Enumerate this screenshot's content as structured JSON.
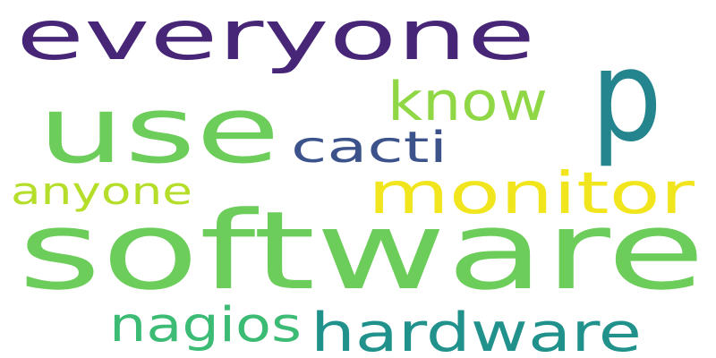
{
  "words": [
    {
      "id": "software",
      "text": "software",
      "color": "#6ccd5a"
    },
    {
      "id": "use",
      "text": "use",
      "color": "#6ccd5a"
    },
    {
      "id": "everyone",
      "text": "everyone",
      "color": "#482677"
    },
    {
      "id": "p",
      "text": "p",
      "color": "#25858e"
    },
    {
      "id": "monitor",
      "text": "monitor",
      "color": "#f1e51d"
    },
    {
      "id": "hardware",
      "text": "hardware",
      "color": "#21918c"
    },
    {
      "id": "know",
      "text": "know",
      "color": "#8fd744"
    },
    {
      "id": "cacti",
      "text": "cacti",
      "color": "#3b528b"
    },
    {
      "id": "nagios",
      "text": "nagios",
      "color": "#3cbb75"
    },
    {
      "id": "anyone",
      "text": "anyone",
      "color": "#b5de2b"
    }
  ]
}
